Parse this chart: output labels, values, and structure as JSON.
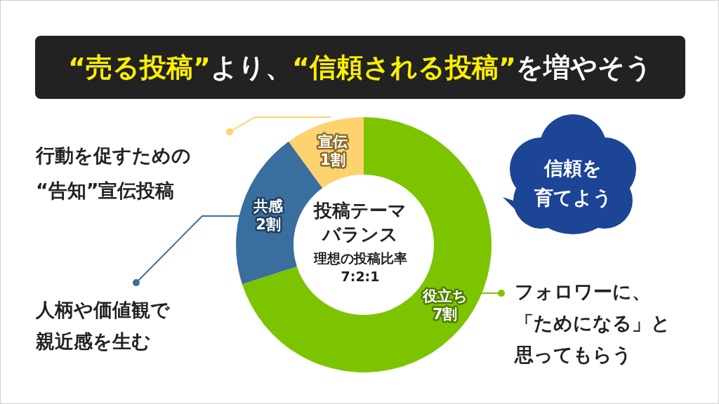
{
  "chart_data": {
    "type": "donut",
    "title": "“売る投稿”より、“信頼される投稿”を増やそう",
    "categories": [
      "役立ち",
      "共感",
      "宣伝"
    ],
    "values": [
      7,
      2,
      1
    ],
    "value_labels": [
      "7割",
      "2割",
      "1割"
    ],
    "colors": [
      "#7dc400",
      "#3a6e9e",
      "#fed26f"
    ],
    "annotations": [
      "投稿テーマバランス",
      "理想の投稿比率7:2:1",
      "フォロワーに、「ためになる」と思ってもらう",
      "人柄や価値観で親近感を生む",
      "行動を促すための“告知”宣伝投稿",
      "信頼を育てよう"
    ]
  }
}
